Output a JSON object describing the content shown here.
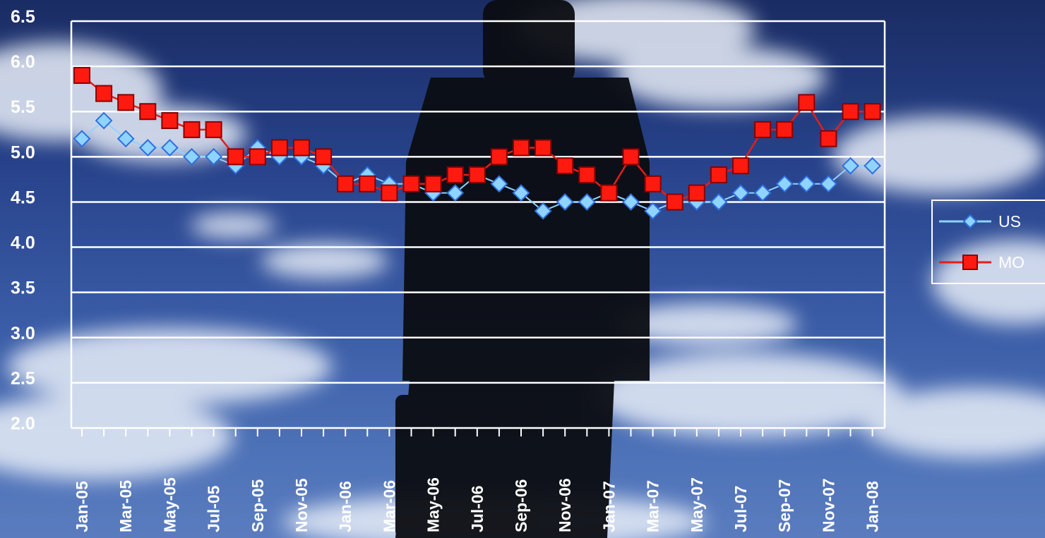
{
  "colors": {
    "us": "#2f6fe0",
    "us_fill": "#8fd3ff",
    "mo": "#e0201a",
    "mo_fill": "#ff1a10",
    "grid": "#ffffff"
  },
  "chart_data": {
    "type": "line",
    "title": "",
    "xlabel": "",
    "ylabel": "",
    "ylim": [
      2.0,
      6.5
    ],
    "yticks": [
      "6.5",
      "6.0",
      "5.5",
      "5.0",
      "4.5",
      "4.0",
      "3.5",
      "3.0",
      "2.5",
      "2.0"
    ],
    "grid": true,
    "legend_position": "right",
    "x_tick_labels": [
      "Jan-05",
      "Mar-05",
      "May-05",
      "Jul-05",
      "Sep-05",
      "Nov-05",
      "Jan-06",
      "Mar-06",
      "May-06",
      "Jul-06",
      "Sep-06",
      "Nov-06",
      "Jan-07",
      "Mar-07",
      "May-07",
      "Jul-07",
      "Sep-07",
      "Nov-07",
      "Jan-08"
    ],
    "x": [
      "Jan-05",
      "Feb-05",
      "Mar-05",
      "Apr-05",
      "May-05",
      "Jun-05",
      "Jul-05",
      "Aug-05",
      "Sep-05",
      "Oct-05",
      "Nov-05",
      "Dec-05",
      "Jan-06",
      "Feb-06",
      "Mar-06",
      "Apr-06",
      "May-06",
      "Jun-06",
      "Jul-06",
      "Aug-06",
      "Sep-06",
      "Oct-06",
      "Nov-06",
      "Dec-06",
      "Jan-07",
      "Feb-07",
      "Mar-07",
      "Apr-07",
      "May-07",
      "Jun-07",
      "Jul-07",
      "Aug-07",
      "Sep-07",
      "Oct-07",
      "Nov-07",
      "Dec-07",
      "Jan-08"
    ],
    "series": [
      {
        "name": "US",
        "marker": "diamond",
        "values": [
          5.2,
          5.4,
          5.2,
          5.1,
          5.1,
          5.0,
          5.0,
          4.9,
          5.1,
          5.0,
          5.0,
          4.9,
          4.7,
          4.8,
          4.7,
          4.7,
          4.6,
          4.6,
          4.8,
          4.7,
          4.6,
          4.4,
          4.5,
          4.5,
          4.6,
          4.5,
          4.4,
          4.5,
          4.5,
          4.5,
          4.6,
          4.6,
          4.7,
          4.7,
          4.7,
          4.9,
          4.9
        ]
      },
      {
        "name": "MO",
        "marker": "square",
        "values": [
          5.9,
          5.7,
          5.6,
          5.5,
          5.4,
          5.3,
          5.3,
          5.0,
          5.0,
          5.1,
          5.1,
          5.0,
          4.7,
          4.7,
          4.6,
          4.7,
          4.7,
          4.8,
          4.8,
          5.0,
          5.1,
          5.1,
          4.9,
          4.8,
          4.6,
          5.0,
          4.7,
          4.5,
          4.6,
          4.8,
          4.9,
          5.3,
          5.3,
          5.6,
          5.2,
          5.5,
          5.5
        ]
      }
    ]
  }
}
